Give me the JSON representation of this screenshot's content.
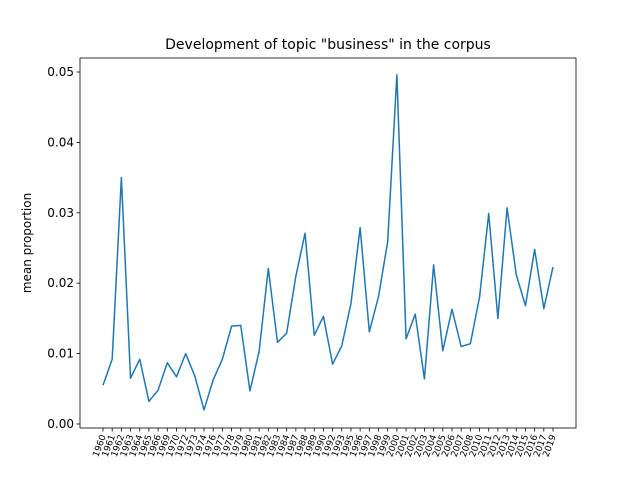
{
  "chart_data": {
    "type": "line",
    "title": "Development of topic \"business\" in the corpus",
    "y_label": "mean proportion",
    "categories": [
      "1960",
      "1961",
      "1962",
      "1963",
      "1964",
      "1965",
      "1966",
      "1969",
      "1970",
      "1972",
      "1973",
      "1974",
      "1976",
      "1977",
      "1978",
      "1979",
      "1980",
      "1981",
      "1982",
      "1983",
      "1984",
      "1987",
      "1988",
      "1989",
      "1990",
      "1992",
      "1993",
      "1995",
      "1996",
      "1997",
      "1998",
      "1999",
      "2000",
      "2001",
      "2002",
      "2003",
      "2004",
      "2005",
      "2006",
      "2007",
      "2008",
      "2010",
      "2011",
      "2012",
      "2013",
      "2014",
      "2015",
      "2016",
      "2017",
      "2019"
    ],
    "series": [
      {
        "name": "business",
        "color": "#1f77b4",
        "values": [
          0.0055,
          0.0092,
          0.035,
          0.0065,
          0.0092,
          0.0032,
          0.0048,
          0.0087,
          0.0067,
          0.01,
          0.0068,
          0.002,
          0.0063,
          0.0092,
          0.0139,
          0.014,
          0.0047,
          0.0103,
          0.0221,
          0.0116,
          0.0129,
          0.021,
          0.0271,
          0.0126,
          0.0153,
          0.0085,
          0.0111,
          0.0171,
          0.0279,
          0.0131,
          0.0181,
          0.0259,
          0.0496,
          0.0121,
          0.0156,
          0.0064,
          0.0226,
          0.0104,
          0.0163,
          0.011,
          0.0114,
          0.018,
          0.0299,
          0.015,
          0.0307,
          0.0212,
          0.0168,
          0.0248,
          0.0164,
          0.0223
        ]
      }
    ],
    "ylim": [
      -0.00057,
      0.05199
    ],
    "yticks": [
      {
        "value": 0,
        "label": "0.00"
      },
      {
        "value": 0.01,
        "label": "0.01"
      },
      {
        "value": 0.02,
        "label": "0.02"
      },
      {
        "value": 0.03,
        "label": "0.03"
      },
      {
        "value": 0.04,
        "label": "0.04"
      },
      {
        "value": 0.05,
        "label": "0.05"
      }
    ],
    "grid": false
  }
}
